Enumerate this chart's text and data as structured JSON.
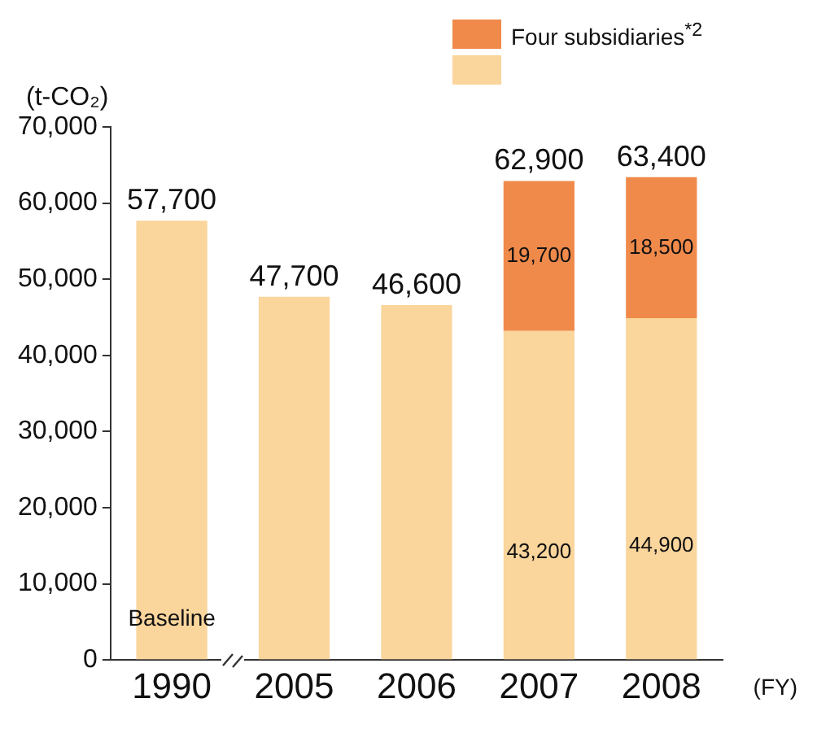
{
  "chart_data": {
    "type": "bar",
    "stacked": true,
    "ylabel": "(t-CO₂)",
    "xlabel": "(FY)",
    "categories": [
      "1990",
      "2005",
      "2006",
      "2007",
      "2008"
    ],
    "series": [
      {
        "color": "#fad59c",
        "values": [
          57700,
          47700,
          46600,
          43200,
          44900
        ],
        "value_labels": [
          null,
          null,
          null,
          "43,200",
          "44,900"
        ]
      },
      {
        "name": "Four subsidiaries$^{*2}$",
        "color": "#f08a4b",
        "values": [
          null,
          null,
          null,
          19700,
          18500
        ],
        "value_labels": [
          null,
          null,
          null,
          "19,700",
          "18,500"
        ]
      }
    ],
    "totals": [
      "57,700",
      "47,700",
      "46,600",
      "62,900",
      "63,400"
    ],
    "annotations": [
      "Baseline"
    ],
    "ylim": [
      0,
      70000
    ],
    "yticks": [
      {
        "value": 0,
        "label": "0"
      },
      {
        "value": 10000,
        "label": "10,000"
      },
      {
        "value": 20000,
        "label": "20,000"
      },
      {
        "value": 30000,
        "label": "30,000"
      },
      {
        "value": 40000,
        "label": "40,000"
      },
      {
        "value": 50000,
        "label": "50,000"
      },
      {
        "value": 60000,
        "label": "60,000"
      },
      {
        "value": 70000,
        "label": "70,000"
      }
    ],
    "grid": false,
    "legend": "top"
  }
}
